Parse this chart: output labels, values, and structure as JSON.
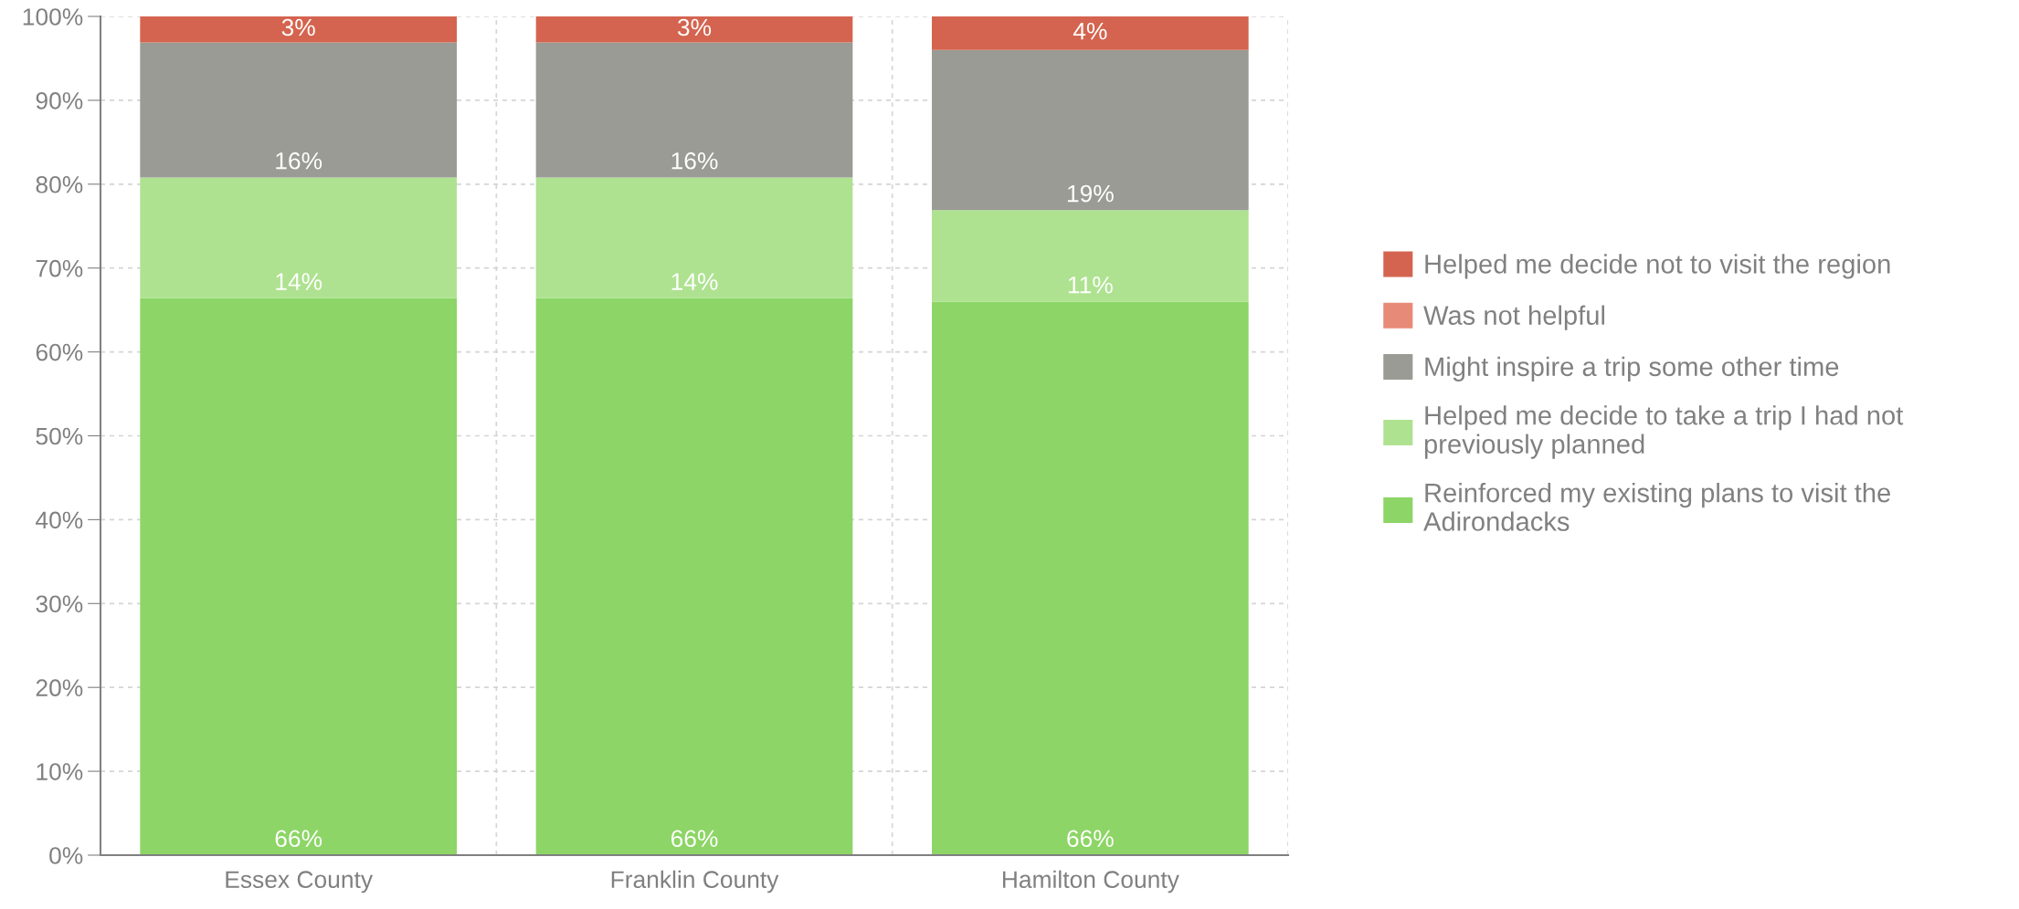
{
  "chart_data": {
    "type": "bar",
    "stacked": true,
    "categories": [
      "Essex County",
      "Franklin County",
      "Hamilton County"
    ],
    "series": [
      {
        "name": "Reinforced my existing plans to visit the Adirondacks",
        "color": "#8dd566",
        "values": [
          66.4,
          66.4,
          66.0
        ],
        "value_labels": [
          "66%",
          "66%",
          "66%"
        ]
      },
      {
        "name": "Helped me decide to take a trip I had not previously planned",
        "color": "#aee290",
        "values": [
          14.4,
          14.4,
          10.9
        ],
        "value_labels": [
          "14%",
          "14%",
          "11%"
        ]
      },
      {
        "name": "Might inspire a trip some other time",
        "color": "#999b94",
        "values": [
          16.1,
          16.1,
          19.1
        ],
        "value_labels": [
          "16%",
          "16%",
          "19%"
        ]
      },
      {
        "name": "Was not helpful",
        "color": "#e88a78",
        "values": [
          0,
          0,
          0
        ],
        "value_labels": [
          null,
          null,
          null
        ]
      },
      {
        "name": "Helped me decide not to visit the region",
        "color": "#d4644f",
        "values": [
          3.1,
          3.1,
          4.0
        ],
        "value_labels": [
          "3%",
          "3%",
          "4%"
        ]
      }
    ],
    "ylim": [
      0,
      100
    ],
    "yticks": [
      {
        "value": 0,
        "label": "0%"
      },
      {
        "value": 10,
        "label": "10%"
      },
      {
        "value": 20,
        "label": "20%"
      },
      {
        "value": 30,
        "label": "30%"
      },
      {
        "value": 40,
        "label": "40%"
      },
      {
        "value": 50,
        "label": "50%"
      },
      {
        "value": 60,
        "label": "60%"
      },
      {
        "value": 70,
        "label": "70%"
      },
      {
        "value": 80,
        "label": "80%"
      },
      {
        "value": 90,
        "label": "90%"
      },
      {
        "value": 100,
        "label": "100%"
      }
    ],
    "grid": true,
    "legend": "right"
  }
}
